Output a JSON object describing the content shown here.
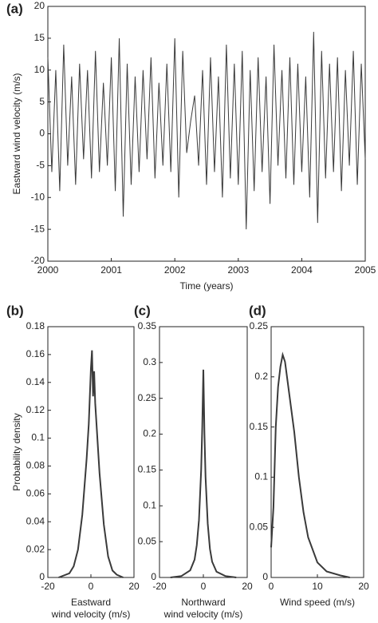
{
  "chart_data": [
    {
      "type": "line",
      "label": "(a)",
      "xlabel": [
        "Time (years)"
      ],
      "ylabel": "Eastward wind velocity (m/s)",
      "color": "#3a3a3a",
      "xlim": [
        2000,
        2005
      ],
      "xticks": [
        2000,
        2001,
        2002,
        2003,
        2004,
        2005
      ],
      "ylim": [
        -20,
        20
      ],
      "yticks": [
        -20,
        -15,
        -10,
        -5,
        0,
        5,
        10,
        15,
        20
      ],
      "x": [
        2000,
        2000.0625,
        2000.125,
        2000.1875,
        2000.25,
        2000.3125,
        2000.375,
        2000.4375,
        2000.5,
        2000.5625,
        2000.625,
        2000.6875,
        2000.75,
        2000.8125,
        2000.875,
        2000.9375,
        2001,
        2001.0625,
        2001.125,
        2001.1875,
        2001.25,
        2001.3125,
        2001.375,
        2001.4375,
        2001.5,
        2001.5625,
        2001.625,
        2001.6875,
        2001.75,
        2001.8125,
        2001.875,
        2001.9375,
        2002,
        2002.0625,
        2002.125,
        2002.1875,
        2002.25,
        2002.3125,
        2002.375,
        2002.4375,
        2002.5,
        2002.5625,
        2002.625,
        2002.6875,
        2002.75,
        2002.8125,
        2002.875,
        2002.9375,
        2003,
        2003.0625,
        2003.125,
        2003.1875,
        2003.25,
        2003.3125,
        2003.375,
        2003.4375,
        2003.5,
        2003.5625,
        2003.625,
        2003.6875,
        2003.75,
        2003.8125,
        2003.875,
        2003.9375,
        2004,
        2004.0625,
        2004.125,
        2004.1875,
        2004.25,
        2004.3125,
        2004.375,
        2004.4375,
        2004.5,
        2004.5625,
        2004.625,
        2004.6875,
        2004.75,
        2004.8125,
        2004.875,
        2004.9375,
        2005
      ],
      "values": [
        12,
        -6,
        10,
        -9,
        14,
        -5,
        9,
        -8,
        11,
        -4,
        10,
        -7,
        13,
        -6,
        8,
        -5,
        12,
        -9,
        15,
        -13,
        11,
        -8,
        9,
        -6,
        10,
        -4,
        12,
        -7,
        8,
        -5,
        11,
        -6,
        15,
        -10,
        13,
        -3,
        2,
        6,
        -5,
        10,
        -8,
        12,
        -6,
        9,
        -10,
        14,
        -7,
        11,
        -8,
        13,
        -15,
        10,
        -9,
        12,
        -6,
        9,
        -11,
        14,
        -5,
        10,
        -7,
        12,
        -8,
        11,
        -6,
        9,
        -10,
        16,
        -14,
        13,
        -7,
        11,
        -6,
        12,
        -9,
        10,
        -5,
        13,
        -8,
        11,
        -4
      ]
    },
    {
      "type": "line",
      "label": "(b)",
      "xlabel": [
        "Eastward",
        "wind velocity (m/s)"
      ],
      "ylabel": "Probability density",
      "color": "#3a3a3a",
      "xlim": [
        -20,
        20
      ],
      "xticks": [
        -20,
        0,
        20
      ],
      "ylim": [
        0,
        0.18
      ],
      "yticks": [
        0,
        0.02,
        0.04,
        0.06,
        0.08,
        0.1,
        0.12,
        0.14,
        0.16,
        0.18
      ],
      "x": [
        -15,
        -10,
        -8,
        -6,
        -4,
        -2,
        -1,
        0,
        0.5,
        1,
        1.5,
        2,
        3,
        4,
        6,
        8,
        10,
        12,
        15
      ],
      "values": [
        0,
        0.003,
        0.008,
        0.02,
        0.045,
        0.085,
        0.11,
        0.15,
        0.163,
        0.13,
        0.148,
        0.125,
        0.1,
        0.075,
        0.038,
        0.015,
        0.005,
        0.002,
        0
      ]
    },
    {
      "type": "line",
      "label": "(c)",
      "xlabel": [
        "Northward",
        "wind velocity (m/s)"
      ],
      "color": "#3a3a3a",
      "xlim": [
        -20,
        20
      ],
      "xticks": [
        -20,
        0,
        20
      ],
      "ylim": [
        0,
        0.35
      ],
      "yticks": [
        0,
        0.05,
        0.1,
        0.15,
        0.2,
        0.25,
        0.3,
        0.35
      ],
      "x": [
        -15,
        -10,
        -6,
        -4,
        -3,
        -2,
        -1,
        -0.5,
        0,
        0.5,
        1,
        2,
        3,
        4,
        6,
        10,
        15
      ],
      "values": [
        0,
        0.002,
        0.01,
        0.025,
        0.045,
        0.08,
        0.15,
        0.21,
        0.29,
        0.2,
        0.14,
        0.075,
        0.04,
        0.022,
        0.008,
        0.002,
        0
      ]
    },
    {
      "type": "line",
      "label": "(d)",
      "xlabel": [
        "Wind speed (m/s)"
      ],
      "color": "#3a3a3a",
      "xlim": [
        0,
        20
      ],
      "xticks": [
        0,
        10,
        20
      ],
      "ylim": [
        0,
        0.25
      ],
      "yticks": [
        0,
        0.05,
        0.1,
        0.15,
        0.2,
        0.25
      ],
      "x": [
        0,
        0.5,
        1,
        1.5,
        2,
        2.5,
        3,
        4,
        5,
        6,
        7,
        8,
        10,
        12,
        15,
        17
      ],
      "values": [
        0.03,
        0.07,
        0.15,
        0.19,
        0.21,
        0.222,
        0.215,
        0.18,
        0.145,
        0.1,
        0.065,
        0.04,
        0.015,
        0.006,
        0.002,
        0
      ]
    }
  ]
}
